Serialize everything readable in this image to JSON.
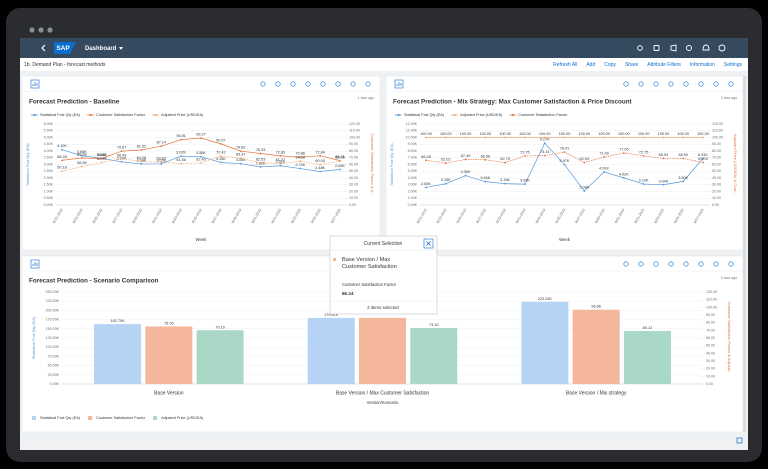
{
  "shell": {
    "logo": "SAP",
    "title": "Dashboard"
  },
  "page": {
    "title": "1b. Demand Plan - forecast methods",
    "actions": [
      "Refresh All",
      "Add",
      "Copy",
      "Share",
      "Attribute Filters",
      "Information",
      "Settings"
    ]
  },
  "chart_data": [
    {
      "type": "line",
      "title": "Forecast Prediction - Baseline",
      "timestamp": "1 hour ago",
      "legend": "top-left",
      "x_label": "Week",
      "y_label": "Statistical Fcst Qty (EA)",
      "y2_label": "Customer Satisfaction Factor & A...",
      "categories": [
        "W31-2019",
        "W33-2019",
        "W35-2019",
        "W37-2019",
        "W39-2019",
        "W41-2019",
        "W43-2019",
        "W45-2019",
        "W47-2019",
        "W49-2019",
        "W51-2019",
        "W01-2020",
        "W03-2020",
        "W05-2020",
        "W07-2020"
      ],
      "series": [
        {
          "name": "Statistical Fcst Qty (EA)",
          "color": "#5899da",
          "values": [
            4100,
            3650,
            3460,
            3200,
            3040,
            3050,
            3620,
            3580,
            3150,
            3060,
            2820,
            2910,
            2700,
            2480,
            2630
          ],
          "value_labels": [
            "4.10K",
            "3.65K",
            "3.46K",
            "3.20K",
            "3.04K",
            "3.05K",
            "3.62K",
            "3.58K",
            "3.15K",
            "3.06K",
            "2.82K",
            "2.91K",
            "2.70K",
            "2.48K",
            "2.63K"
          ]
        },
        {
          "name": "Customer Satisfaction Factor",
          "color": "#e8743b",
          "axis": "y2",
          "values": [
            66.28,
            69.58,
            68.88,
            79.67,
            81.52,
            87.14,
            96.81,
            99.27,
            90.57,
            79.82,
            76.33,
            72.83,
            70.86,
            72.84,
            65.71
          ],
          "value_labels": [
            "66.28",
            "69.58",
            "68.88",
            "79.67",
            "81.52",
            "87.14",
            "96.81",
            "99.27",
            "90.57",
            "79.82",
            "76.33",
            "72.83",
            "70.86",
            "72.84",
            "65.71"
          ]
        },
        {
          "name": "Adjusted Price (USD/EA)",
          "color": "#f3a46f",
          "axis": "y2",
          "values": [
            50.18,
            56.98,
            62.99,
            68.49,
            64.28,
            63.52,
            61.56,
            62.4,
            72.42,
            69.37,
            62.53,
            61.27,
            64.98,
            60.0,
            65.09
          ],
          "value_labels": [
            "50.18",
            "56.98",
            "62.99",
            "68.49",
            "64.28",
            "63.52",
            "61.56",
            "62.40",
            "72.42",
            "69.37",
            "62.53",
            "61.27",
            "64.98",
            "60.00",
            "65.09"
          ]
        }
      ],
      "ylim": [
        0,
        6000
      ],
      "yticks": [
        {
          "value": 0,
          "label": "0.00K"
        },
        {
          "value": 500,
          "label": "0.50K"
        },
        {
          "value": 1000,
          "label": "1.00K"
        },
        {
          "value": 1500,
          "label": "1.50K"
        },
        {
          "value": 2000,
          "label": "2.00K"
        },
        {
          "value": 2500,
          "label": "2.50K"
        },
        {
          "value": 3000,
          "label": "3.00K"
        },
        {
          "value": 3500,
          "label": "3.50K"
        },
        {
          "value": 4000,
          "label": "4.00K"
        },
        {
          "value": 4500,
          "label": "4.50K"
        },
        {
          "value": 5000,
          "label": "5.00K"
        },
        {
          "value": 5500,
          "label": "5.50K"
        },
        {
          "value": 6000,
          "label": "6.00K"
        }
      ],
      "y2lim": [
        0,
        120
      ],
      "y2ticks": [
        {
          "value": 0,
          "label": "0.00"
        },
        {
          "value": 10,
          "label": "10.00"
        },
        {
          "value": 20,
          "label": "20.00"
        },
        {
          "value": 30,
          "label": "30.00"
        },
        {
          "value": 40,
          "label": "40.00"
        },
        {
          "value": 50,
          "label": "50.00"
        },
        {
          "value": 60,
          "label": "60.00"
        },
        {
          "value": 70,
          "label": "70.00"
        },
        {
          "value": 80,
          "label": "80.00"
        },
        {
          "value": 90,
          "label": "90.00"
        },
        {
          "value": 100,
          "label": "100.00"
        },
        {
          "value": 110,
          "label": "110.00"
        },
        {
          "value": 120,
          "label": "120.00"
        }
      ],
      "grid": true
    },
    {
      "type": "line",
      "title": "Forecast Prediction - Mix Strategy: Max Customer Satisfaction & Price Discount",
      "timestamp": "1 hour ago",
      "legend": "top-left",
      "x_label": "Week",
      "y_label": "Statistical Fcst Qty (EA)",
      "y2_label": "Adjusted Price (USD/EA) & Cust...",
      "categories": [
        "W31-2019",
        "W33-2019",
        "W35-2019",
        "W37-2019",
        "W39-2019",
        "W41-2019",
        "W43-2019",
        "W45-2019",
        "W47-2019",
        "W49-2019",
        "W51-2019",
        "W01-2020",
        "W03-2020",
        "W05-2020",
        "W07-2020"
      ],
      "series": [
        {
          "name": "Statistical Fcst Qty (EA)",
          "color": "#5899da",
          "values": [
            2600,
            3150,
            4360,
            3460,
            3160,
            3090,
            9170,
            5970,
            2080,
            4910,
            4020,
            3100,
            3000,
            3500,
            6910
          ],
          "value_labels": [
            "2.60K",
            "3.15K",
            "4.36K",
            "3.46K",
            "3.16K",
            "3.09K",
            "9.17K",
            "5.97K",
            "2.08K",
            "4.91K",
            "4.02K",
            "3.10K",
            "3.00K",
            "3.50K",
            "6.91K"
          ]
        },
        {
          "name": "Adjusted Price (USD/EA)",
          "color": "#f3a46f",
          "axis": "y2",
          "values": [
            100,
            100,
            100,
            100,
            100,
            100,
            100,
            100,
            100,
            100,
            100,
            100,
            100,
            100,
            100
          ],
          "value_labels": [
            "100.00",
            "100.00",
            "100.00",
            "100.00",
            "100.00",
            "100.00",
            "100.00",
            "100.00",
            "100.00",
            "100.00",
            "100.00",
            "100.00",
            "100.00",
            "100.00",
            "100.00"
          ]
        },
        {
          "name": "Customer Satisfaction Factor",
          "color": "#e8743b",
          "axis": "y2",
          "values": [
            66.28,
            62.02,
            67.49,
            66.98,
            62.75,
            72.75,
            73.14,
            78.41,
            62.94,
            71.0,
            77.05,
            72.75,
            69.03,
            68.9,
            63.09
          ],
          "value_labels": [
            "66.28",
            "62.02",
            "67.49",
            "66.98",
            "62.75",
            "72.75",
            "73.14",
            "78.41",
            "62.94",
            "71.00",
            "77.05",
            "72.75",
            "69.03",
            "68.90",
            "63.09"
          ]
        }
      ],
      "ylim": [
        0,
        12000
      ],
      "yticks": [
        {
          "value": 0,
          "label": "0.00K"
        },
        {
          "value": 1000,
          "label": "1.00K"
        },
        {
          "value": 2000,
          "label": "2.00K"
        },
        {
          "value": 3000,
          "label": "3.00K"
        },
        {
          "value": 4000,
          "label": "4.00K"
        },
        {
          "value": 5000,
          "label": "5.00K"
        },
        {
          "value": 6000,
          "label": "6.00K"
        },
        {
          "value": 7000,
          "label": "7.00K"
        },
        {
          "value": 8000,
          "label": "8.00K"
        },
        {
          "value": 9000,
          "label": "9.00K"
        },
        {
          "value": 10000,
          "label": "10.00K"
        },
        {
          "value": 11000,
          "label": "11.00K"
        },
        {
          "value": 12000,
          "label": "12.00K"
        }
      ],
      "y2lim": [
        0,
        120
      ],
      "y2ticks": [
        {
          "value": 0,
          "label": "0.00"
        },
        {
          "value": 10,
          "label": "10.00"
        },
        {
          "value": 20,
          "label": "20.00"
        },
        {
          "value": 30,
          "label": "30.00"
        },
        {
          "value": 40,
          "label": "40.00"
        },
        {
          "value": 50,
          "label": "50.00"
        },
        {
          "value": 60,
          "label": "60.00"
        },
        {
          "value": 70,
          "label": "70.00"
        },
        {
          "value": 80,
          "label": "80.00"
        },
        {
          "value": 90,
          "label": "90.00"
        },
        {
          "value": 100,
          "label": "100.00"
        },
        {
          "value": 110,
          "label": "110.00"
        },
        {
          "value": 120,
          "label": "120.00"
        }
      ],
      "grid": true
    },
    {
      "type": "bar",
      "title": "Forecast Prediction - Scenario Comparison",
      "timestamp": "1 hour ago",
      "legend": "bottom-left",
      "x_label": "Version/Scenario",
      "y_label": "Statistical Fcst Qty (EA)",
      "y2_label": "Customer Satisfaction Factor & Adjuste...",
      "categories": [
        "Base Version",
        "Base Version / Max Customer Satisfaction",
        "Base Version / Mix strategy"
      ],
      "series": [
        {
          "name": "Statistical Fcst Qty (EA)",
          "color": "#b5d3f2",
          "values": [
            162700,
            179610,
            223240
          ],
          "value_labels": [
            "162.70K",
            "179.61K",
            "223.24K"
          ]
        },
        {
          "name": "Customer Satisfaction Factor",
          "color": "#f5b79c",
          "axis": "y2",
          "values": [
            75.05,
            86.24,
            96.86
          ],
          "value_labels": [
            "75.05",
            null,
            "96.86"
          ]
        },
        {
          "name": "Adjusted Price (USD/EA)",
          "color": "#a9d8c6",
          "axis": "y2",
          "values": [
            70.1,
            73.1,
            69.12
          ],
          "value_labels": [
            "70.10",
            "73.10",
            "69.12"
          ]
        }
      ],
      "ylim": [
        0,
        250000
      ],
      "yticks": [
        {
          "value": 0,
          "label": "0.00K"
        },
        {
          "value": 25000,
          "label": "25.00K"
        },
        {
          "value": 50000,
          "label": "50.00K"
        },
        {
          "value": 75000,
          "label": "75.00K"
        },
        {
          "value": 100000,
          "label": "100.00K"
        },
        {
          "value": 125000,
          "label": "125.00K"
        },
        {
          "value": 150000,
          "label": "150.00K"
        },
        {
          "value": 175000,
          "label": "175.00K"
        },
        {
          "value": 200000,
          "label": "200.00K"
        },
        {
          "value": 225000,
          "label": "225.00K"
        },
        {
          "value": 250000,
          "label": "250.00K"
        }
      ],
      "y2lim": [
        0,
        120
      ],
      "y2ticks": [
        {
          "value": 0,
          "label": "0.00"
        },
        {
          "value": 10,
          "label": "10.00"
        },
        {
          "value": 20,
          "label": "20.00"
        },
        {
          "value": 30,
          "label": "30.00"
        },
        {
          "value": 40,
          "label": "40.00"
        },
        {
          "value": 50,
          "label": "50.00"
        },
        {
          "value": 60,
          "label": "60.00"
        },
        {
          "value": 70,
          "label": "70.00"
        },
        {
          "value": 80,
          "label": "80.00"
        },
        {
          "value": 90,
          "label": "90.00"
        },
        {
          "value": 100,
          "label": "100.00"
        },
        {
          "value": 110,
          "label": "110.00"
        },
        {
          "value": 120,
          "label": "120.00"
        }
      ],
      "grid": true
    }
  ],
  "popup": {
    "title": "Current Selection",
    "footer": "2 items selected"
  }
}
